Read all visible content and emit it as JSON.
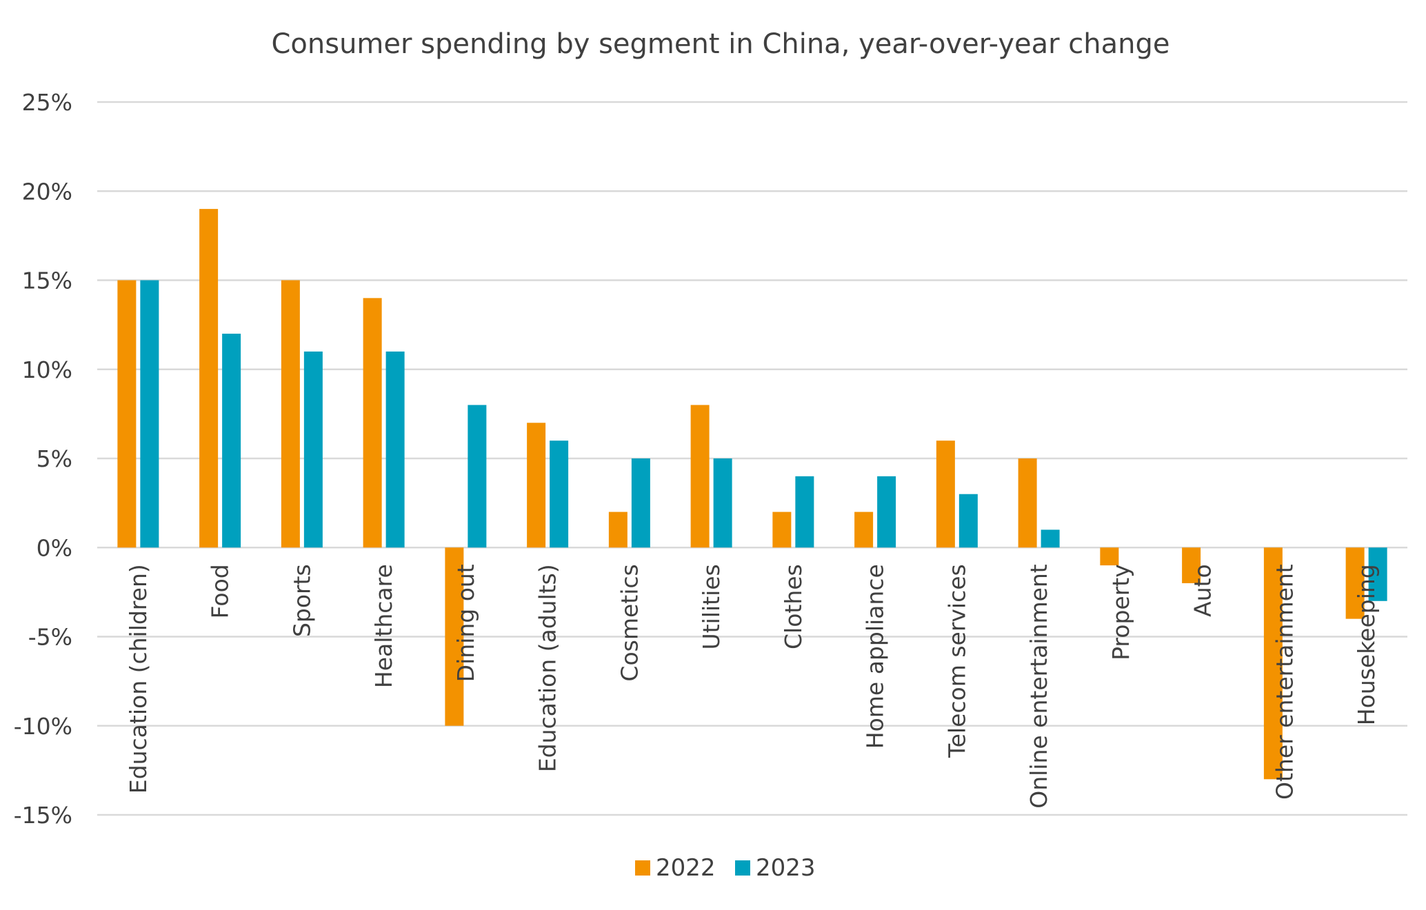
{
  "chart_data": {
    "type": "bar",
    "title": "Consumer spending by segment in China, year-over-year change",
    "xlabel": "",
    "ylabel": "",
    "categories": [
      "Education (children)",
      "Food",
      "Sports",
      "Healthcare",
      "Dining out",
      "Education (adults)",
      "Cosmetics",
      "Utilities",
      "Clothes",
      "Home appliance",
      "Telecom services",
      "Online entertainment",
      "Property",
      "Auto",
      "Other entertainment",
      "Housekeeping"
    ],
    "series": [
      {
        "name": "2022",
        "color": "#f39200",
        "values": [
          15,
          19,
          15,
          14,
          -10,
          7,
          2,
          8,
          2,
          2,
          6,
          5,
          -1,
          -2,
          -13,
          -4
        ]
      },
      {
        "name": "2023",
        "color": "#00a0be",
        "values": [
          15,
          12,
          11,
          11,
          8,
          6,
          5,
          5,
          4,
          4,
          3,
          1,
          0,
          0,
          0,
          -3
        ]
      }
    ],
    "ylim": [
      -15,
      25
    ],
    "y_ticks": [
      25,
      20,
      15,
      10,
      5,
      0,
      -5,
      -10,
      -15
    ],
    "y_tick_labels": [
      "25%",
      "20%",
      "15%",
      "10%",
      "5%",
      "0%",
      "-5%",
      "-10%",
      "-15%"
    ],
    "grid": true,
    "legend_position": "bottom"
  }
}
